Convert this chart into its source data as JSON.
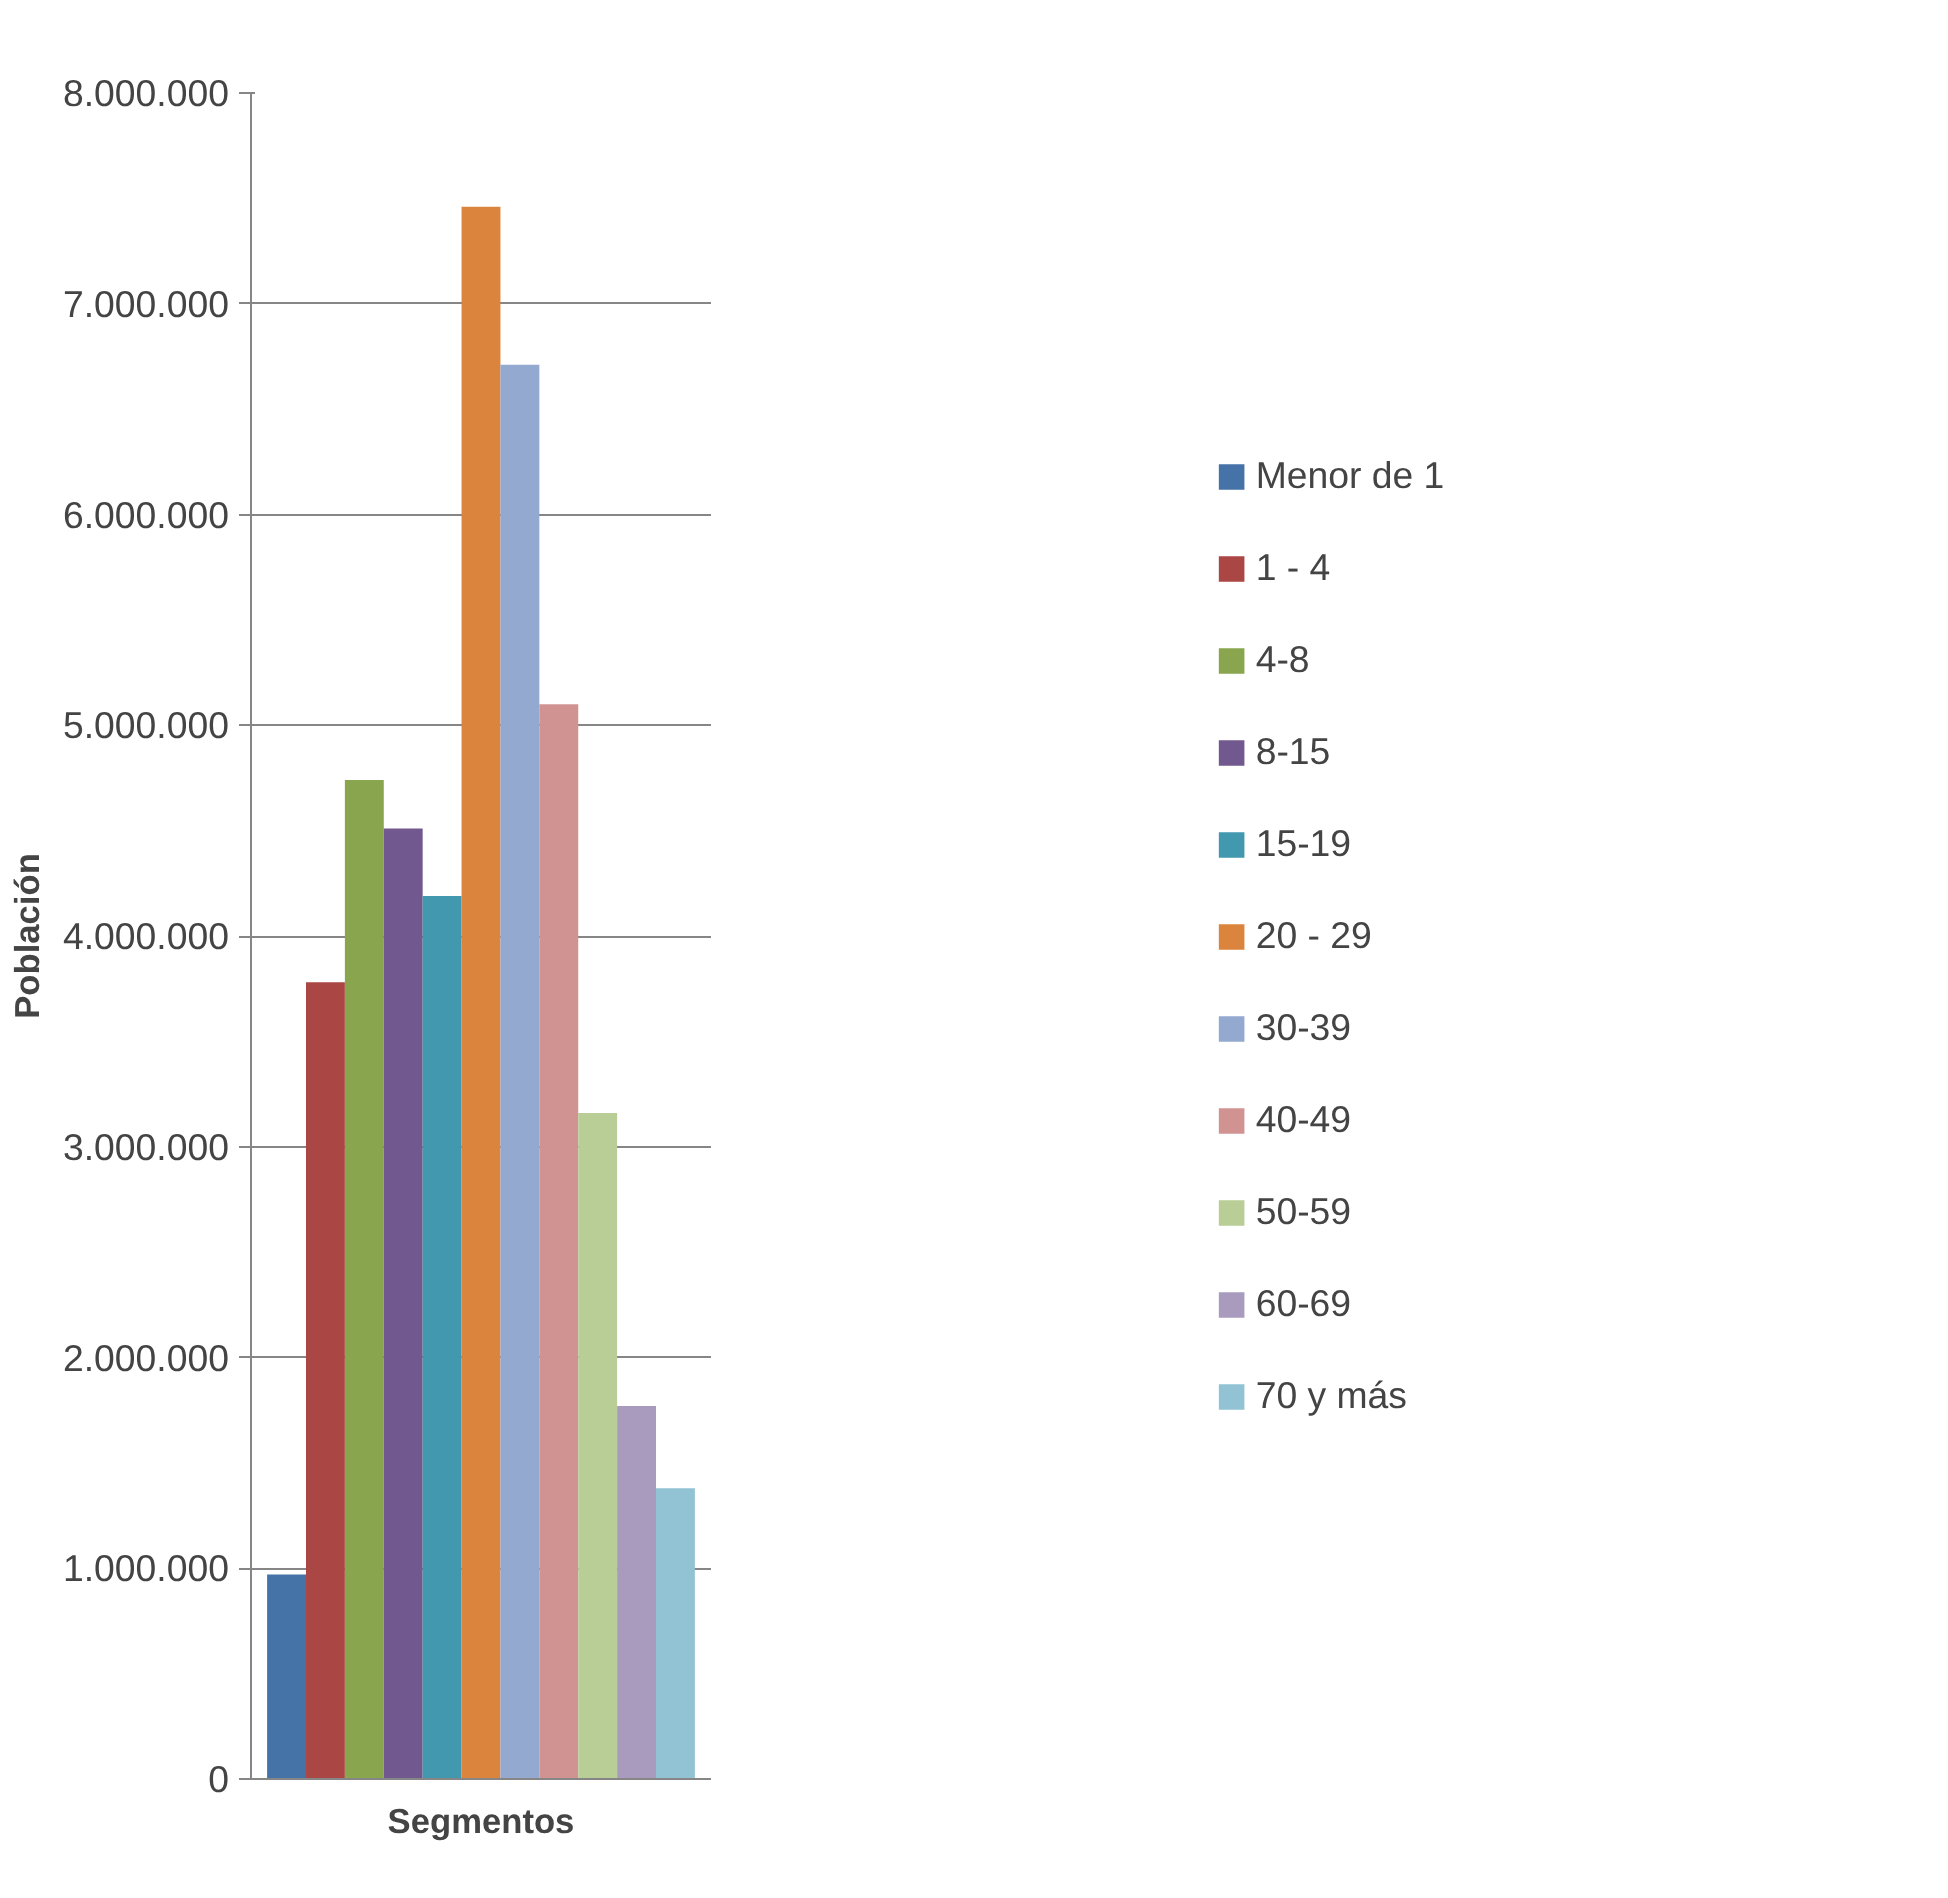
{
  "chart_data": {
    "type": "bar",
    "xlabel": "Segmentos",
    "ylabel": "Población",
    "categories": [
      null
    ],
    "series": [
      {
        "name": "Menor de 1",
        "color": "#4572a7",
        "values": [
          970000
        ]
      },
      {
        "name": "1 - 4",
        "color": "#aa4643",
        "values": [
          3780000
        ]
      },
      {
        "name": "4-8",
        "color": "#89a54e",
        "values": [
          4740000
        ]
      },
      {
        "name": "8-15",
        "color": "#71588f",
        "values": [
          4510000
        ]
      },
      {
        "name": "15-19",
        "color": "#4198af",
        "values": [
          4190000
        ]
      },
      {
        "name": "20 - 29",
        "color": "#db843d",
        "values": [
          7460000
        ]
      },
      {
        "name": "30-39",
        "color": "#93a9cf",
        "values": [
          6710000
        ]
      },
      {
        "name": "40-49",
        "color": "#d19392",
        "values": [
          5100000
        ]
      },
      {
        "name": "50-59",
        "color": "#b9cd96",
        "values": [
          3160000
        ]
      },
      {
        "name": "60-69",
        "color": "#a99bbd",
        "values": [
          1770000
        ]
      },
      {
        "name": "70 y más",
        "color": "#92c3d4",
        "values": [
          1380000
        ]
      }
    ],
    "ylim": [
      0,
      8000000
    ],
    "yticks": [
      {
        "value": 0,
        "label": "0"
      },
      {
        "value": 1000000,
        "label": "1.000.000"
      },
      {
        "value": 2000000,
        "label": "2.000.000"
      },
      {
        "value": 3000000,
        "label": "3.000.000"
      },
      {
        "value": 4000000,
        "label": "4.000.000"
      },
      {
        "value": 5000000,
        "label": "5.000.000"
      },
      {
        "value": 6000000,
        "label": "6.000.000"
      },
      {
        "value": 7000000,
        "label": "7.000.000"
      },
      {
        "value": 8000000,
        "label": "8.000.000"
      }
    ],
    "grid": "y",
    "legend": "right",
    "tick_labels": "y"
  }
}
